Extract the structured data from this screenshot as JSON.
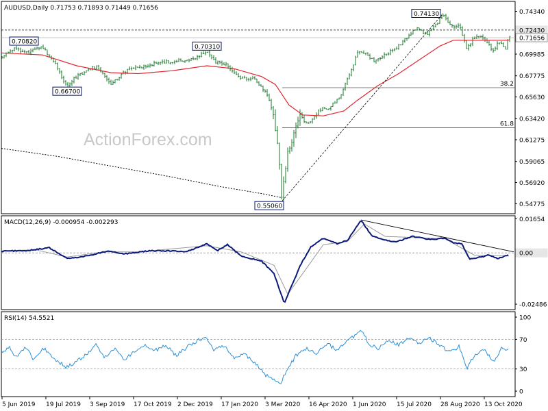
{
  "header": {
    "main": "AUDUSD,Daily  0.71753 0.71893 0.71449 0.71656",
    "macd": "MACD(12,26,9) -0.000954 -0.002293",
    "rsi": "RSI(14) 54.5521"
  },
  "watermark": "ActionForex.com",
  "colors": {
    "candle": "#1a7a2a",
    "ma": "#e0262d",
    "ma_long": "#000000",
    "macd": "#0a1a7a",
    "signal": "#999999",
    "rsi": "#2a8fd6"
  },
  "chart_data": [
    {
      "type": "candlestick",
      "panel": "price",
      "ylim": [
        0.5375,
        0.7535
      ],
      "yticks": [
        "0.74340",
        "0.72430",
        "0.71656",
        "0.69985",
        "0.67775",
        "0.65630",
        "0.63420",
        "0.61275",
        "0.59065",
        "0.56920",
        "0.54775"
      ],
      "current_price_label": "0.71656",
      "resistance_label": "0.72430",
      "resistance_value": 0.7243,
      "xticks": [
        "5 Jun 2019",
        "19 Jul 2019",
        "3 Sep 2019",
        "17 Oct 2019",
        "2 Dec 2019",
        "17 Jan 2020",
        "3 Mar 2020",
        "16 Apr 2020",
        "1 Jun 2020",
        "15 Jul 2020",
        "28 Aug 2020",
        "13 Oct 2020"
      ],
      "anchors": [
        [
          0,
          0.6965
        ],
        [
          18,
          0.705
        ],
        [
          40,
          0.7015
        ],
        [
          58,
          0.7082
        ],
        [
          76,
          0.6935
        ],
        [
          96,
          0.667
        ],
        [
          112,
          0.6785
        ],
        [
          140,
          0.688
        ],
        [
          160,
          0.67
        ],
        [
          185,
          0.684
        ],
        [
          205,
          0.687
        ],
        [
          230,
          0.691
        ],
        [
          262,
          0.693
        ],
        [
          283,
          0.695
        ],
        [
          300,
          0.7031
        ],
        [
          312,
          0.692
        ],
        [
          330,
          0.6885
        ],
        [
          350,
          0.676
        ],
        [
          370,
          0.674
        ],
        [
          390,
          0.658
        ],
        [
          398,
          0.635
        ],
        [
          405,
          0.6
        ],
        [
          410,
          0.5506
        ],
        [
          414,
          0.579
        ],
        [
          420,
          0.605
        ],
        [
          428,
          0.618
        ],
        [
          436,
          0.635
        ],
        [
          450,
          0.629
        ],
        [
          464,
          0.643
        ],
        [
          480,
          0.645
        ],
        [
          496,
          0.658
        ],
        [
          512,
          0.684
        ],
        [
          520,
          0.701
        ],
        [
          530,
          0.702
        ],
        [
          545,
          0.693
        ],
        [
          560,
          0.6985
        ],
        [
          575,
          0.705
        ],
        [
          590,
          0.715
        ],
        [
          606,
          0.726
        ],
        [
          622,
          0.72
        ],
        [
          636,
          0.73
        ],
        [
          645,
          0.7413
        ],
        [
          655,
          0.729
        ],
        [
          670,
          0.728
        ],
        [
          680,
          0.705
        ],
        [
          692,
          0.718
        ],
        [
          705,
          0.716
        ],
        [
          718,
          0.703
        ],
        [
          728,
          0.713
        ],
        [
          736,
          0.705
        ],
        [
          741,
          0.7166
        ]
      ],
      "ma_points": [
        [
          0,
          0.701
        ],
        [
          60,
          0.699
        ],
        [
          110,
          0.688
        ],
        [
          160,
          0.681
        ],
        [
          200,
          0.68
        ],
        [
          250,
          0.683
        ],
        [
          300,
          0.688
        ],
        [
          340,
          0.685
        ],
        [
          380,
          0.677
        ],
        [
          400,
          0.669
        ],
        [
          420,
          0.648
        ],
        [
          440,
          0.638
        ],
        [
          470,
          0.637
        ],
        [
          500,
          0.642
        ],
        [
          520,
          0.653
        ],
        [
          550,
          0.668
        ],
        [
          580,
          0.68
        ],
        [
          610,
          0.694
        ],
        [
          640,
          0.708
        ],
        [
          660,
          0.714
        ],
        [
          700,
          0.714
        ],
        [
          741,
          0.714
        ]
      ],
      "ma_long_points": [
        [
          0,
          0.604
        ],
        [
          80,
          0.596
        ],
        [
          160,
          0.586
        ],
        [
          240,
          0.576
        ],
        [
          320,
          0.565
        ],
        [
          380,
          0.558
        ],
        [
          408,
          0.554
        ]
      ],
      "labels": [
        {
          "text": "0.70820",
          "x": 0,
          "y": 0.7082
        },
        {
          "text": "0.66700",
          "x": 96,
          "y": 0.667
        },
        {
          "text": "0.70310",
          "x": 300,
          "y": 0.7031
        },
        {
          "text": "0.55060",
          "x": 410,
          "y": 0.5506
        },
        {
          "text": "0.74130",
          "x": 645,
          "y": 0.7413
        }
      ],
      "fib_levels": [
        {
          "label": "38.2",
          "value": 0.6657,
          "x_start": 410
        },
        {
          "label": "61.8",
          "value": 0.625,
          "x_start": 410
        }
      ],
      "trendline": {
        "from": [
          410,
          0.5506
        ],
        "to": [
          645,
          0.7413
        ]
      }
    },
    {
      "type": "line",
      "panel": "macd",
      "name": "MACD(12,26,9)",
      "ylim": [
        -0.0275,
        0.018
      ],
      "yticks": [
        "0.01654",
        "0.00",
        "-0.02486"
      ],
      "current_value_label": "0.00",
      "macd_points": [
        [
          0,
          0.0008
        ],
        [
          40,
          0.0012
        ],
        [
          70,
          0.0025
        ],
        [
          96,
          -0.0028
        ],
        [
          130,
          -0.0012
        ],
        [
          155,
          0.001
        ],
        [
          180,
          -0.0005
        ],
        [
          215,
          0.001
        ],
        [
          250,
          0.001
        ],
        [
          270,
          0.0005
        ],
        [
          300,
          0.0045
        ],
        [
          315,
          0.001
        ],
        [
          330,
          0.004
        ],
        [
          350,
          -0.0015
        ],
        [
          380,
          -0.004
        ],
        [
          398,
          -0.01
        ],
        [
          413,
          -0.0245
        ],
        [
          425,
          -0.015
        ],
        [
          438,
          -0.005
        ],
        [
          452,
          0.003
        ],
        [
          470,
          0.007
        ],
        [
          490,
          0.0045
        ],
        [
          505,
          0.006
        ],
        [
          525,
          0.016
        ],
        [
          540,
          0.0085
        ],
        [
          556,
          0.0065
        ],
        [
          575,
          0.0052
        ],
        [
          600,
          0.008
        ],
        [
          625,
          0.0065
        ],
        [
          648,
          0.0072
        ],
        [
          660,
          0.0048
        ],
        [
          672,
          0.0045
        ],
        [
          684,
          -0.003
        ],
        [
          700,
          -0.002
        ],
        [
          712,
          -0.001
        ],
        [
          724,
          -0.0028
        ],
        [
          741,
          -0.0008
        ]
      ],
      "signal_points": [
        [
          0,
          0.001
        ],
        [
          50,
          0.0015
        ],
        [
          96,
          -0.002
        ],
        [
          150,
          0.0005
        ],
        [
          200,
          0.0005
        ],
        [
          300,
          0.0035
        ],
        [
          350,
          0.0005
        ],
        [
          398,
          -0.006
        ],
        [
          418,
          -0.02
        ],
        [
          440,
          -0.01
        ],
        [
          470,
          0.004
        ],
        [
          505,
          0.0055
        ],
        [
          530,
          0.014
        ],
        [
          560,
          0.008
        ],
        [
          600,
          0.0075
        ],
        [
          648,
          0.0068
        ],
        [
          690,
          -0.001
        ],
        [
          741,
          -0.0015
        ]
      ],
      "trendline": {
        "from": [
          525,
          0.016
        ],
        "to": [
          748,
          0.0005
        ]
      }
    },
    {
      "type": "line",
      "panel": "rsi",
      "name": "RSI(14)",
      "ylim": [
        0,
        100
      ],
      "yticks": [
        "100",
        "70",
        "30",
        "0"
      ],
      "levels": [
        70,
        30
      ],
      "rsi_points": [
        [
          0,
          52
        ],
        [
          12,
          58
        ],
        [
          22,
          46
        ],
        [
          35,
          60
        ],
        [
          48,
          42
        ],
        [
          62,
          58
        ],
        [
          75,
          46
        ],
        [
          95,
          32
        ],
        [
          110,
          40
        ],
        [
          125,
          50
        ],
        [
          138,
          62
        ],
        [
          150,
          46
        ],
        [
          165,
          58
        ],
        [
          180,
          42
        ],
        [
          195,
          55
        ],
        [
          210,
          62
        ],
        [
          225,
          55
        ],
        [
          240,
          62
        ],
        [
          255,
          48
        ],
        [
          275,
          62
        ],
        [
          290,
          70
        ],
        [
          300,
          72
        ],
        [
          310,
          55
        ],
        [
          325,
          62
        ],
        [
          340,
          45
        ],
        [
          355,
          50
        ],
        [
          370,
          38
        ],
        [
          385,
          22
        ],
        [
          398,
          16
        ],
        [
          408,
          12
        ],
        [
          418,
          30
        ],
        [
          430,
          48
        ],
        [
          445,
          58
        ],
        [
          460,
          50
        ],
        [
          475,
          64
        ],
        [
          490,
          56
        ],
        [
          505,
          68
        ],
        [
          515,
          74
        ],
        [
          525,
          82
        ],
        [
          538,
          62
        ],
        [
          550,
          58
        ],
        [
          565,
          70
        ],
        [
          580,
          62
        ],
        [
          595,
          72
        ],
        [
          610,
          64
        ],
        [
          625,
          72
        ],
        [
          640,
          62
        ],
        [
          655,
          52
        ],
        [
          668,
          60
        ],
        [
          680,
          32
        ],
        [
          692,
          50
        ],
        [
          705,
          56
        ],
        [
          718,
          40
        ],
        [
          730,
          58
        ],
        [
          741,
          56
        ]
      ]
    }
  ]
}
